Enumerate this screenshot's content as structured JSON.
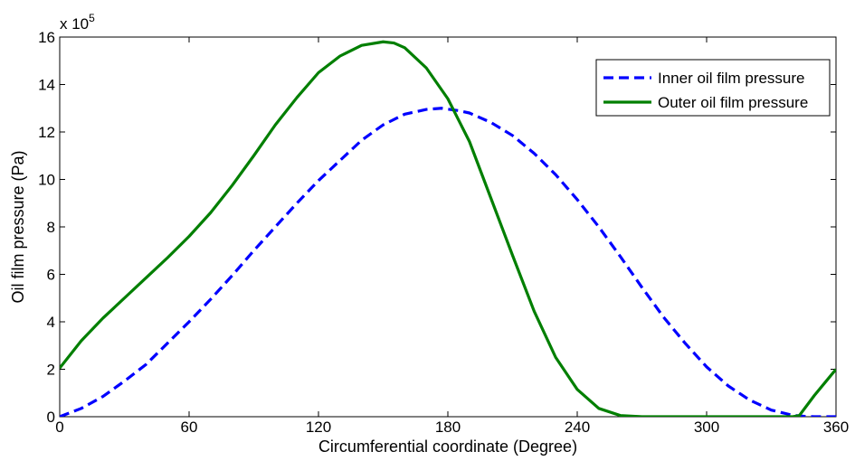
{
  "chart_data": {
    "type": "line",
    "xlabel": "Circumferential coordinate (Degree)",
    "ylabel": "Oil film pressure (Pa)",
    "y_multiplier_text": "x 10",
    "y_multiplier_exponent": "5",
    "xlim": [
      0,
      360
    ],
    "ylim": [
      0,
      16
    ],
    "x_ticks": [
      "0",
      "60",
      "120",
      "180",
      "240",
      "300",
      "360"
    ],
    "y_ticks": [
      "0",
      "2",
      "4",
      "6",
      "8",
      "10",
      "12",
      "14",
      "16"
    ],
    "grid": false,
    "legend_position": "top-right",
    "series": [
      {
        "name": "Inner oil film pressure",
        "color": "#0000ff",
        "style": "dashed",
        "x": [
          0,
          10,
          20,
          30,
          40,
          50,
          60,
          70,
          80,
          90,
          100,
          110,
          120,
          130,
          140,
          150,
          160,
          170,
          177,
          185,
          190,
          200,
          210,
          220,
          230,
          240,
          250,
          260,
          270,
          280,
          290,
          300,
          310,
          320,
          330,
          340,
          345,
          350,
          355,
          360
        ],
        "values": [
          0,
          0.35,
          0.85,
          1.5,
          2.2,
          3.1,
          4.0,
          4.95,
          5.95,
          7.0,
          8.0,
          9.0,
          9.95,
          10.8,
          11.65,
          12.3,
          12.75,
          12.95,
          13.0,
          12.9,
          12.8,
          12.4,
          11.85,
          11.1,
          10.2,
          9.15,
          8.0,
          6.75,
          5.45,
          4.2,
          3.1,
          2.1,
          1.3,
          0.7,
          0.28,
          0.06,
          0.02,
          0,
          0,
          0
        ]
      },
      {
        "name": "Outer oil film pressure",
        "color": "#007f00",
        "style": "solid",
        "x": [
          0,
          10,
          20,
          30,
          40,
          50,
          60,
          70,
          80,
          90,
          100,
          110,
          120,
          130,
          140,
          150,
          155,
          160,
          170,
          180,
          190,
          200,
          210,
          220,
          230,
          240,
          250,
          260,
          270,
          280,
          290,
          300,
          310,
          320,
          330,
          340,
          343,
          350,
          355,
          360
        ],
        "values": [
          2.05,
          3.2,
          4.15,
          5.0,
          5.85,
          6.7,
          7.6,
          8.6,
          9.75,
          11.0,
          12.3,
          13.45,
          14.5,
          15.2,
          15.65,
          15.8,
          15.75,
          15.55,
          14.7,
          13.4,
          11.6,
          9.2,
          6.8,
          4.45,
          2.5,
          1.15,
          0.35,
          0.05,
          0,
          0,
          0,
          0,
          0,
          0,
          0,
          0,
          0.05,
          0.9,
          1.45,
          2.0
        ]
      }
    ]
  }
}
